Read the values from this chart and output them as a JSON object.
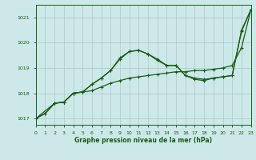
{
  "line1": {
    "x": [
      0,
      1,
      2,
      3,
      4,
      5,
      6,
      7,
      8,
      9,
      10,
      11,
      12,
      13,
      14,
      15,
      16,
      17,
      18,
      19,
      20,
      21,
      22,
      23
    ],
    "y": [
      1017.0,
      1017.2,
      1017.6,
      1017.65,
      1018.0,
      1018.05,
      1018.1,
      1018.25,
      1018.4,
      1018.5,
      1018.6,
      1018.65,
      1018.7,
      1018.75,
      1018.8,
      1018.85,
      1018.85,
      1018.9,
      1018.9,
      1018.95,
      1019.0,
      1019.1,
      1019.8,
      1021.3
    ]
  },
  "line2": {
    "x": [
      0,
      1,
      2,
      3,
      4,
      5,
      6,
      7,
      8,
      9,
      10,
      11,
      12,
      13,
      14,
      15,
      16,
      17,
      18,
      19,
      20,
      21,
      22,
      23
    ],
    "y": [
      1017.0,
      1017.2,
      1017.6,
      1017.65,
      1018.0,
      1018.05,
      1018.35,
      1018.6,
      1018.9,
      1019.4,
      1019.65,
      1019.7,
      1019.55,
      1019.35,
      1019.1,
      1019.1,
      1018.7,
      1018.6,
      1018.55,
      1018.6,
      1018.65,
      1018.7,
      1020.5,
      1021.3
    ]
  },
  "line3": {
    "x": [
      0,
      2,
      3,
      4,
      5,
      6,
      7,
      8,
      9,
      10,
      11,
      12,
      13,
      14,
      15,
      16,
      17,
      18,
      19,
      20,
      21,
      22,
      23
    ],
    "y": [
      1017.0,
      1017.6,
      1017.65,
      1018.0,
      1018.05,
      1018.35,
      1018.6,
      1018.9,
      1019.35,
      1019.65,
      1019.7,
      1019.55,
      1019.3,
      1019.1,
      1019.1,
      1018.7,
      1018.55,
      1018.5,
      1018.6,
      1018.65,
      1018.7,
      1020.45,
      1021.3
    ]
  },
  "bg_color": "#cce8e8",
  "line_color": "#1a5c1a",
  "grid_color": "#b0c8c8",
  "ylabel_ticks": [
    1017,
    1018,
    1019,
    1020,
    1021
  ],
  "xlabel": "Graphe pression niveau de la mer (hPa)",
  "xlim": [
    0,
    23
  ],
  "ylim": [
    1016.75,
    1021.5
  ],
  "title": ""
}
